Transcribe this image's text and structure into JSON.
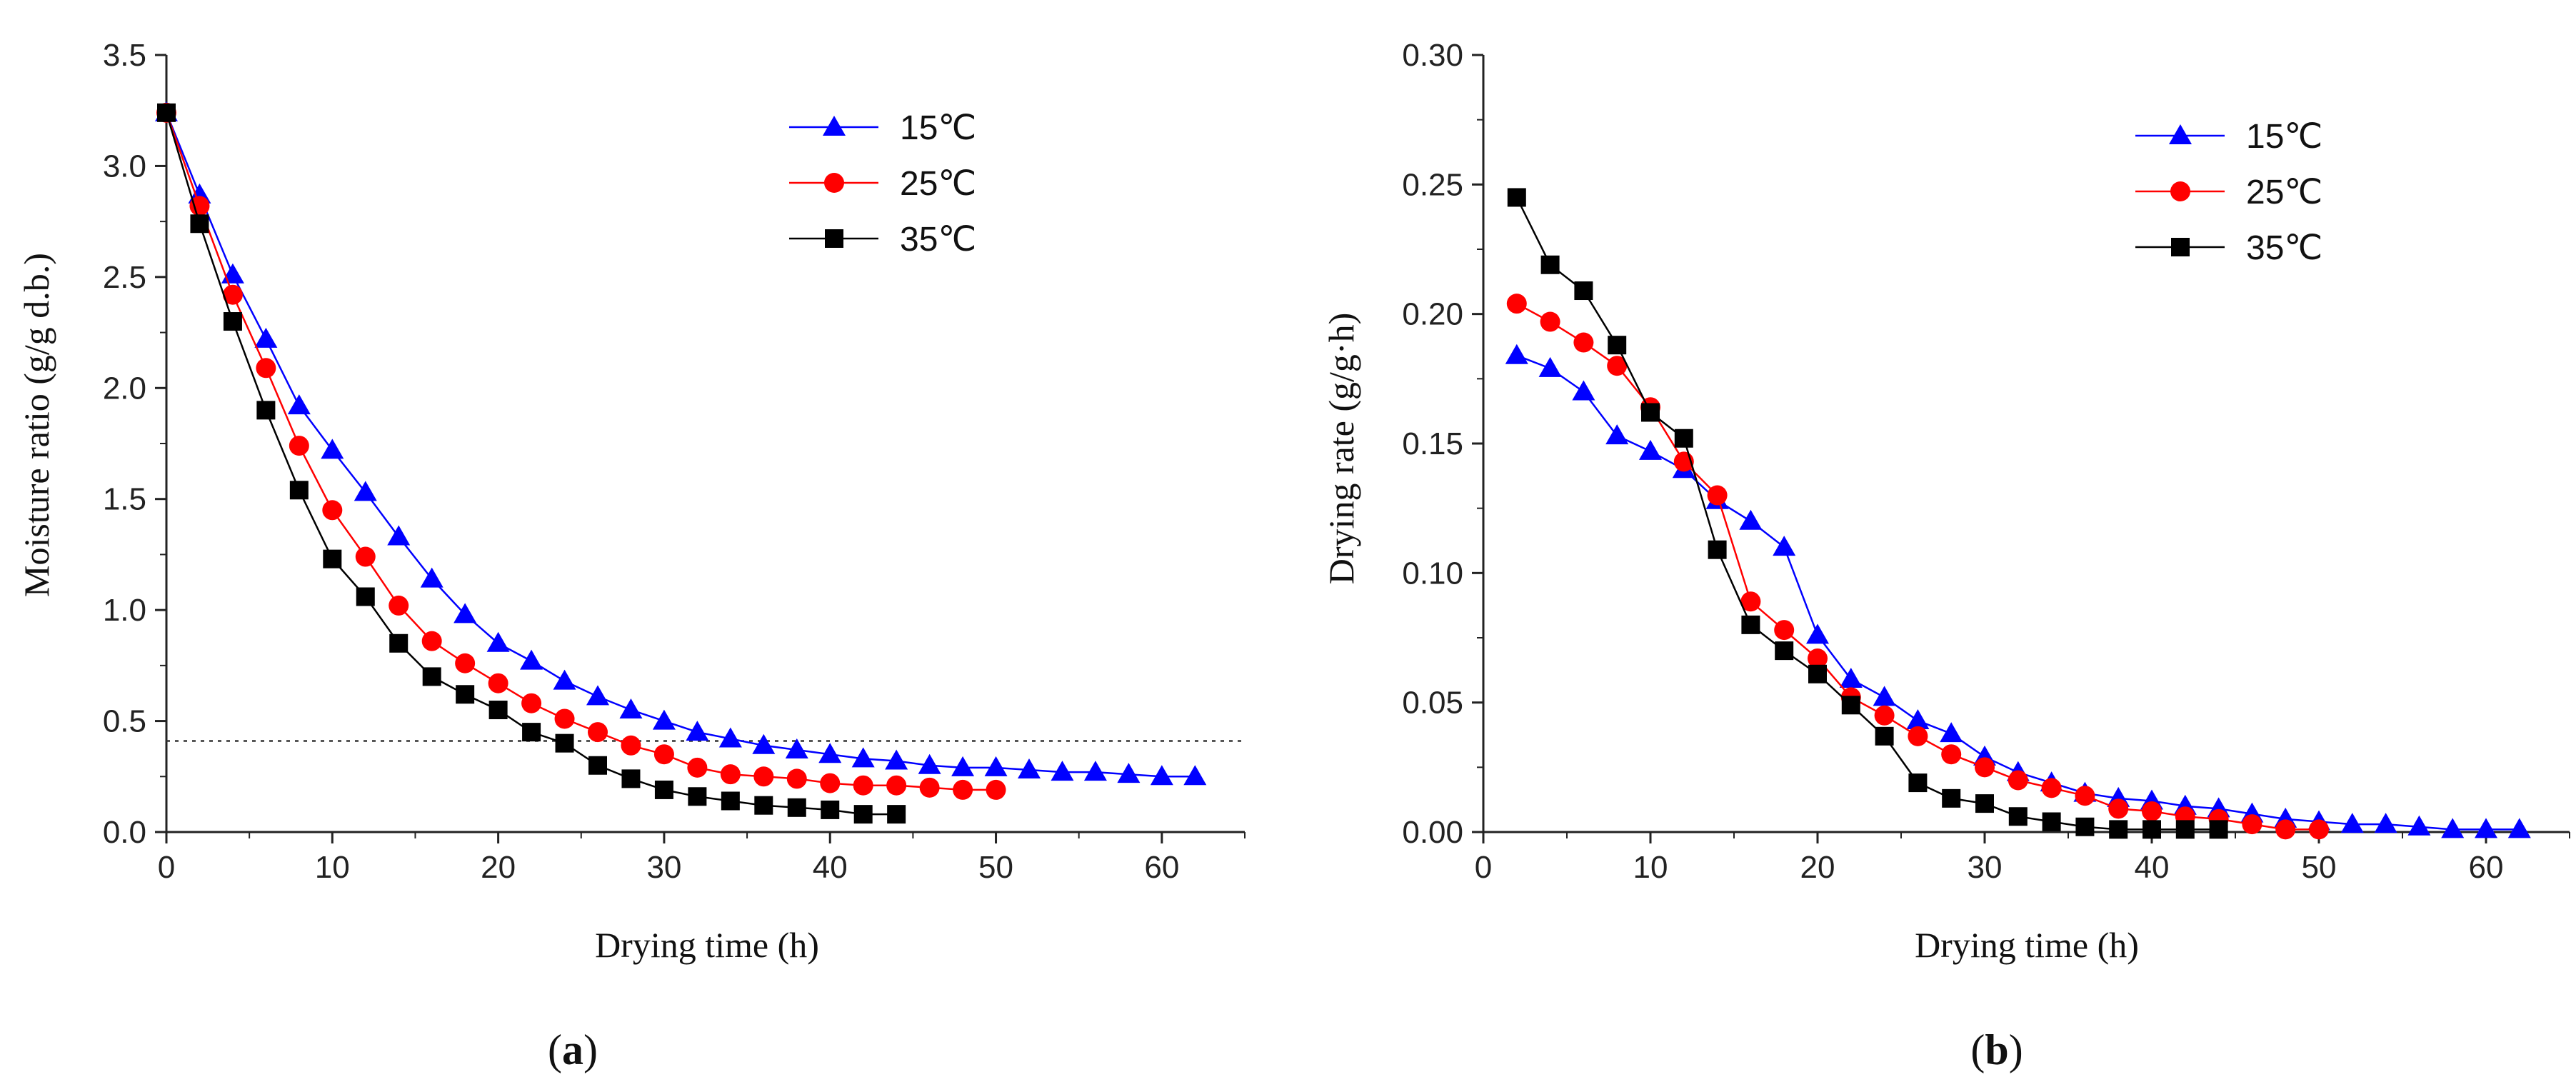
{
  "chart_data": [
    {
      "type": "line",
      "panel_label": {
        "open": "(",
        "letter": "a",
        "close": ")"
      },
      "xlabel": "Drying time (h)",
      "ylabel": "Moisture ratio (g/g d.b.)",
      "xlim": [
        0,
        65
      ],
      "ylim": [
        0,
        3.5
      ],
      "xticks": [
        "0",
        "10",
        "20",
        "30",
        "40",
        "50",
        "60"
      ],
      "yticks": [
        "0.0",
        "0.5",
        "1.0",
        "1.5",
        "2.0",
        "2.5",
        "3.0",
        "3.5"
      ],
      "reference_line": {
        "y": 0.41,
        "style": "dotted"
      },
      "legend_position": "top-right",
      "series": [
        {
          "name": "15℃",
          "color": "#0000ff",
          "marker": "triangle",
          "x": [
            0,
            2,
            4,
            6,
            8,
            10,
            12,
            14,
            16,
            18,
            20,
            22,
            24,
            26,
            28,
            30,
            32,
            34,
            36,
            38,
            40,
            42,
            44,
            46,
            48,
            50,
            52,
            54,
            56,
            58,
            60,
            62
          ],
          "y": [
            3.24,
            2.87,
            2.51,
            2.22,
            1.92,
            1.72,
            1.53,
            1.33,
            1.14,
            0.98,
            0.85,
            0.77,
            0.68,
            0.61,
            0.55,
            0.5,
            0.45,
            0.42,
            0.39,
            0.37,
            0.35,
            0.33,
            0.32,
            0.3,
            0.29,
            0.29,
            0.28,
            0.27,
            0.27,
            0.26,
            0.25,
            0.25
          ]
        },
        {
          "name": "25℃",
          "color": "#ff0000",
          "marker": "circle",
          "x": [
            0,
            2,
            4,
            6,
            8,
            10,
            12,
            14,
            16,
            18,
            20,
            22,
            24,
            26,
            28,
            30,
            32,
            34,
            36,
            38,
            40,
            42,
            44,
            46,
            48,
            50
          ],
          "y": [
            3.24,
            2.82,
            2.42,
            2.09,
            1.74,
            1.45,
            1.24,
            1.02,
            0.86,
            0.76,
            0.67,
            0.58,
            0.51,
            0.45,
            0.39,
            0.35,
            0.29,
            0.26,
            0.25,
            0.24,
            0.22,
            0.21,
            0.21,
            0.2,
            0.19,
            0.19
          ]
        },
        {
          "name": "35℃",
          "color": "#000000",
          "marker": "square",
          "x": [
            0,
            2,
            4,
            6,
            8,
            10,
            12,
            14,
            16,
            18,
            20,
            22,
            24,
            26,
            28,
            30,
            32,
            34,
            36,
            38,
            40,
            42,
            44
          ],
          "y": [
            3.24,
            2.74,
            2.3,
            1.9,
            1.54,
            1.23,
            1.06,
            0.85,
            0.7,
            0.62,
            0.55,
            0.45,
            0.4,
            0.3,
            0.24,
            0.19,
            0.16,
            0.14,
            0.12,
            0.11,
            0.1,
            0.08,
            0.08
          ]
        }
      ]
    },
    {
      "type": "line",
      "panel_label": {
        "open": "(",
        "letter": "b",
        "close": ")"
      },
      "xlabel": "Drying time (h)",
      "ylabel": "Drying rate (g/g·h)",
      "xlim": [
        0,
        65
      ],
      "ylim": [
        0,
        0.3
      ],
      "xticks": [
        "0",
        "10",
        "20",
        "30",
        "40",
        "50",
        "60"
      ],
      "yticks": [
        "0.00",
        "0.05",
        "0.10",
        "0.15",
        "0.20",
        "0.25",
        "0.30"
      ],
      "legend_position": "top-right",
      "series": [
        {
          "name": "15℃",
          "color": "#0000ff",
          "marker": "triangle",
          "x": [
            2,
            4,
            6,
            8,
            10,
            12,
            14,
            16,
            18,
            20,
            22,
            24,
            26,
            28,
            30,
            32,
            34,
            36,
            38,
            40,
            42,
            44,
            46,
            48,
            50,
            52,
            54,
            56,
            58,
            60,
            62
          ],
          "y": [
            0.184,
            0.179,
            0.17,
            0.153,
            0.147,
            0.14,
            0.128,
            0.12,
            0.11,
            0.076,
            0.059,
            0.052,
            0.043,
            0.038,
            0.029,
            0.023,
            0.019,
            0.015,
            0.013,
            0.012,
            0.01,
            0.009,
            0.007,
            0.005,
            0.004,
            0.003,
            0.003,
            0.002,
            0.001,
            0.001,
            0.001
          ]
        },
        {
          "name": "25℃",
          "color": "#ff0000",
          "marker": "circle",
          "x": [
            2,
            4,
            6,
            8,
            10,
            12,
            14,
            16,
            18,
            20,
            22,
            24,
            26,
            28,
            30,
            32,
            34,
            36,
            38,
            40,
            42,
            44,
            46,
            48,
            50
          ],
          "y": [
            0.204,
            0.197,
            0.189,
            0.18,
            0.164,
            0.143,
            0.13,
            0.089,
            0.078,
            0.067,
            0.052,
            0.045,
            0.037,
            0.03,
            0.025,
            0.02,
            0.017,
            0.014,
            0.009,
            0.008,
            0.006,
            0.005,
            0.003,
            0.001,
            0.001
          ]
        },
        {
          "name": "35℃",
          "color": "#000000",
          "marker": "square",
          "x": [
            2,
            4,
            6,
            8,
            10,
            12,
            14,
            16,
            18,
            20,
            22,
            24,
            26,
            28,
            30,
            32,
            34,
            36,
            38,
            40,
            42,
            44
          ],
          "y": [
            0.245,
            0.219,
            0.209,
            0.188,
            0.162,
            0.152,
            0.109,
            0.08,
            0.07,
            0.061,
            0.049,
            0.037,
            0.019,
            0.013,
            0.011,
            0.006,
            0.004,
            0.002,
            0.001,
            0.001,
            0.001,
            0.001
          ]
        }
      ]
    }
  ]
}
